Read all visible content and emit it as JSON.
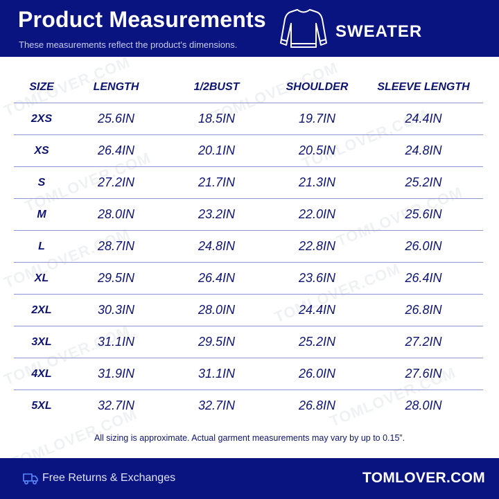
{
  "header": {
    "title": "Product Measurements",
    "subtitle": "These measurements reflect the product's dimensions.",
    "product_type": "SWEATER",
    "icon": "sweater-icon"
  },
  "table": {
    "columns": [
      "SIZE",
      "LENGTH",
      "1/2BUST",
      "SHOULDER",
      "SLEEVE LENGTH"
    ],
    "rows": [
      [
        "2XS",
        "25.6IN",
        "18.5IN",
        "19.7IN",
        "24.4IN"
      ],
      [
        "XS",
        "26.4IN",
        "20.1IN",
        "20.5IN",
        "24.8IN"
      ],
      [
        "S",
        "27.2IN",
        "21.7IN",
        "21.3IN",
        "25.2IN"
      ],
      [
        "M",
        "28.0IN",
        "23.2IN",
        "22.0IN",
        "25.6IN"
      ],
      [
        "L",
        "28.7IN",
        "24.8IN",
        "22.8IN",
        "26.0IN"
      ],
      [
        "XL",
        "29.5IN",
        "26.4IN",
        "23.6IN",
        "26.4IN"
      ],
      [
        "2XL",
        "30.3IN",
        "28.0IN",
        "24.4IN",
        "26.8IN"
      ],
      [
        "3XL",
        "31.1IN",
        "29.5IN",
        "25.2IN",
        "27.2IN"
      ],
      [
        "4XL",
        "31.9IN",
        "31.1IN",
        "26.0IN",
        "27.6IN"
      ],
      [
        "5XL",
        "32.7IN",
        "32.7IN",
        "26.8IN",
        "28.0IN"
      ]
    ]
  },
  "disclaimer": "All sizing is approximate. Actual garment measurements may vary by up to 0.15”.",
  "footer": {
    "returns": "Free Returns & Exchanges",
    "returns_icon": "truck-icon",
    "brand": "TOMLOVER.COM"
  },
  "watermark": "TOMLOVER.COM",
  "colors": {
    "primary": "#0a1480",
    "text": "#0d1470",
    "divider": "#8d92d3"
  }
}
